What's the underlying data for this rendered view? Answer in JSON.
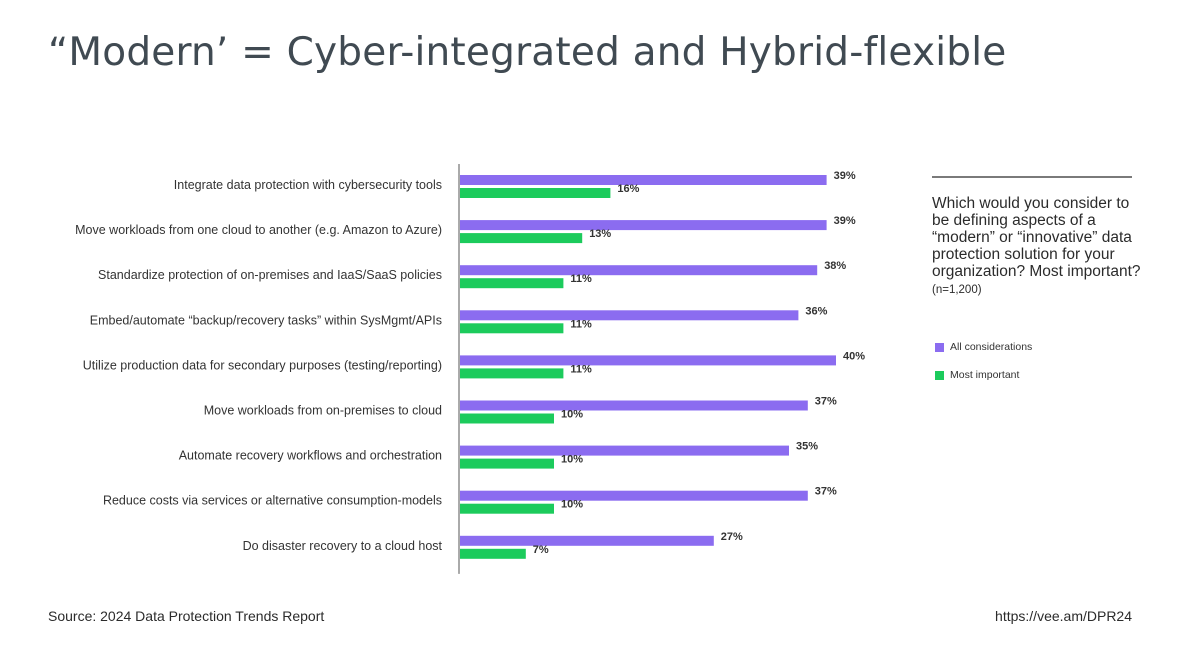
{
  "title": "“Modern’ = Cyber-integrated and Hybrid-flexible",
  "question": {
    "text": "Which would you consider to be defining aspects of a “modern” or “innovative” data protection solution for your organization? Most important?",
    "n": "(n=1,200)"
  },
  "source": "Source: 2024 Data Protection Trends Report",
  "url": "https://vee.am/DPR24",
  "colors": {
    "all": "#8b6cf0",
    "most": "#1ccb5c",
    "axis": "#555555"
  },
  "chart_data": {
    "type": "bar",
    "orientation": "horizontal",
    "categories": [
      "Integrate data protection with cybersecurity tools",
      "Move workloads from one cloud to another (e.g. Amazon to Azure)",
      "Standardize protection of on-premises and IaaS/SaaS policies",
      "Embed/automate “backup/recovery tasks” within SysMgmt/APIs",
      "Utilize production data for secondary purposes (testing/reporting)",
      "Move workloads from on-premises to cloud",
      "Automate recovery workflows and orchestration",
      "Reduce costs via services or alternative consumption-models",
      "Do disaster recovery to a cloud host"
    ],
    "series": [
      {
        "name": "All considerations",
        "values": [
          39,
          39,
          38,
          36,
          40,
          37,
          35,
          37,
          27
        ]
      },
      {
        "name": "Most important",
        "values": [
          16,
          13,
          11,
          11,
          11,
          10,
          10,
          10,
          7
        ]
      }
    ],
    "value_suffix": "%",
    "xlim": [
      0,
      40
    ],
    "legend_position": "right",
    "grid": false
  }
}
